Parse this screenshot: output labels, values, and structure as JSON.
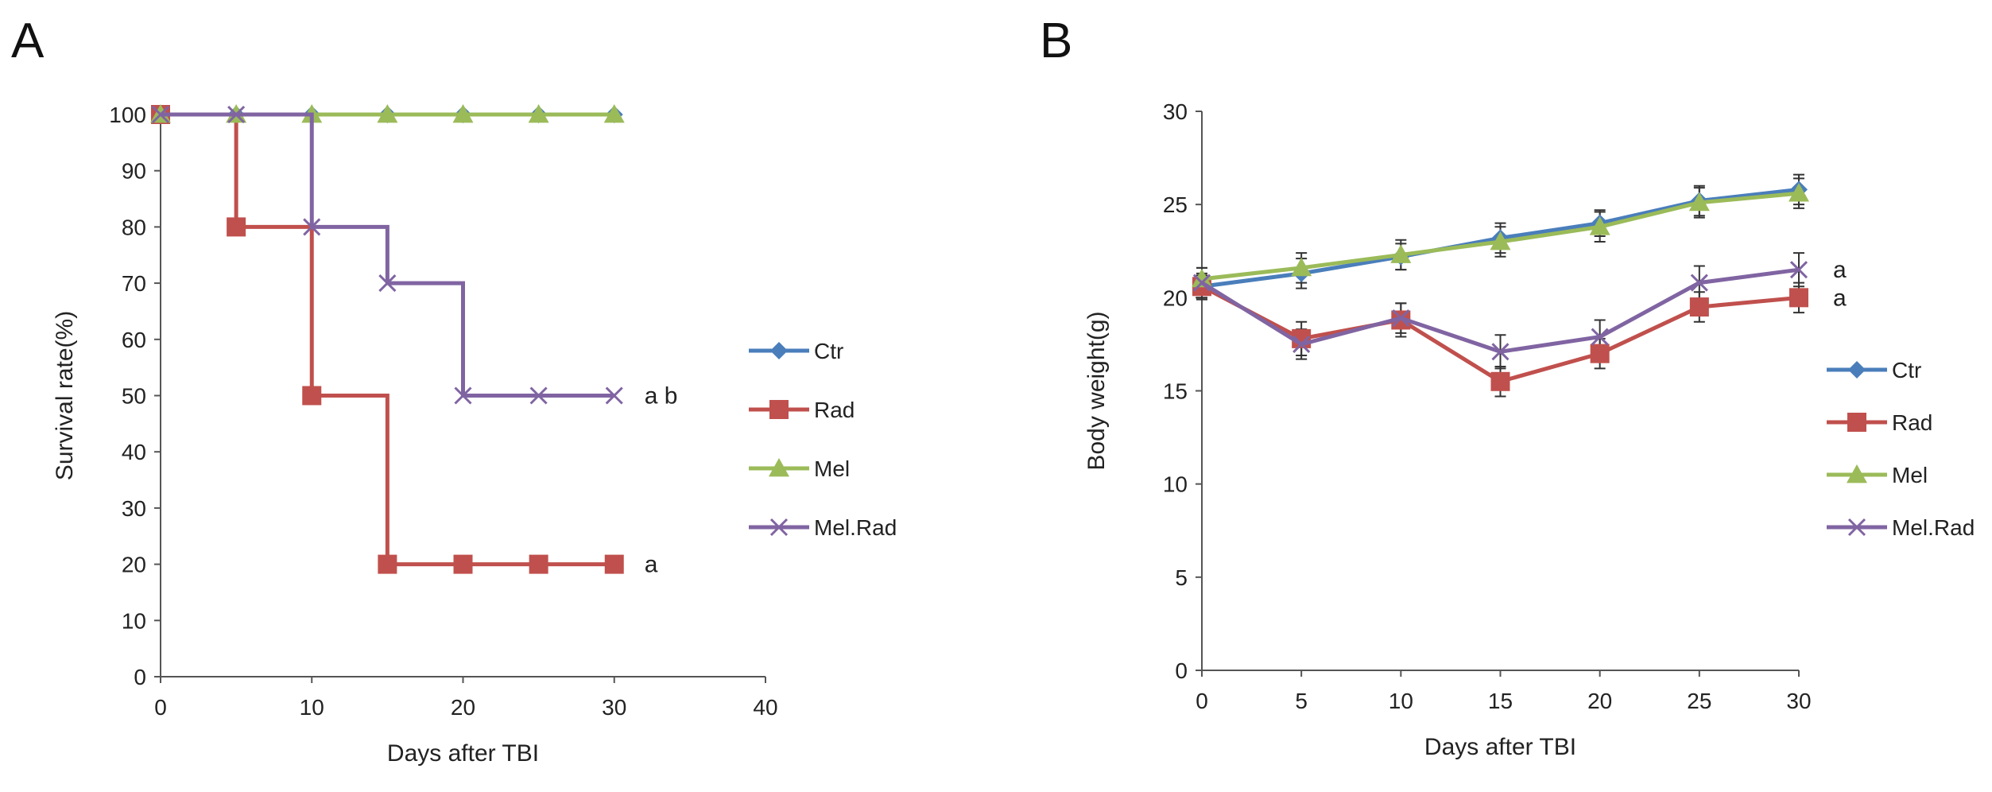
{
  "panels": {
    "A": {
      "label": "A"
    },
    "B": {
      "label": "B"
    }
  },
  "chart_data": [
    {
      "type": "line",
      "step": true,
      "panel": "A",
      "title": "",
      "xlabel": "Days after TBI",
      "ylabel": "Survival rate(%)",
      "xlim": [
        0,
        40
      ],
      "ylim": [
        0,
        100
      ],
      "xticks": [
        0,
        10,
        20,
        30,
        40
      ],
      "yticks": [
        0,
        10,
        20,
        30,
        40,
        50,
        60,
        70,
        80,
        90,
        100
      ],
      "legend_position": "right",
      "series": [
        {
          "name": "Ctr",
          "color": "#4a7ebb",
          "marker": "diamond",
          "x": [
            0,
            5,
            10,
            15,
            20,
            25,
            30
          ],
          "y": [
            100,
            100,
            100,
            100,
            100,
            100,
            100
          ]
        },
        {
          "name": "Rad",
          "color": "#c0504d",
          "marker": "square",
          "x": [
            0,
            5,
            10,
            15,
            20,
            25,
            30
          ],
          "y": [
            100,
            80,
            50,
            20,
            20,
            20,
            20
          ]
        },
        {
          "name": "Mel",
          "color": "#9bbb59",
          "marker": "triangle",
          "x": [
            0,
            5,
            10,
            15,
            20,
            25,
            30
          ],
          "y": [
            100,
            100,
            100,
            100,
            100,
            100,
            100
          ]
        },
        {
          "name": "Mel.Rad",
          "color": "#8064a2",
          "marker": "x",
          "x": [
            0,
            5,
            10,
            15,
            20,
            25,
            30
          ],
          "y": [
            100,
            100,
            80,
            70,
            50,
            50,
            50
          ]
        }
      ],
      "annotations": [
        {
          "text": "a b",
          "x": 30,
          "y": 50
        },
        {
          "text": "a",
          "x": 30,
          "y": 20
        }
      ]
    },
    {
      "type": "line",
      "panel": "B",
      "title": "",
      "xlabel": "Days after TBI",
      "ylabel": "Body weight(g)",
      "xlim": [
        0,
        30
      ],
      "ylim": [
        0,
        30
      ],
      "xticks": [
        0,
        5,
        10,
        15,
        20,
        25,
        30
      ],
      "yticks": [
        0,
        5,
        10,
        15,
        20,
        25,
        30
      ],
      "legend_position": "right",
      "series": [
        {
          "name": "Ctr",
          "color": "#4a7ebb",
          "marker": "diamond",
          "x": [
            0,
            5,
            10,
            15,
            20,
            25,
            30
          ],
          "y": [
            20.6,
            21.3,
            22.2,
            23.2,
            24.0,
            25.2,
            25.8
          ],
          "err": [
            0.6,
            0.8,
            0.7,
            0.8,
            0.7,
            0.8,
            0.8
          ]
        },
        {
          "name": "Rad",
          "color": "#c0504d",
          "marker": "square",
          "x": [
            0,
            5,
            10,
            15,
            20,
            25,
            30
          ],
          "y": [
            20.6,
            17.8,
            18.8,
            15.5,
            17.0,
            19.5,
            20.0
          ],
          "err": [
            0.7,
            0.9,
            0.9,
            0.8,
            0.8,
            0.8,
            0.8
          ]
        },
        {
          "name": "Mel",
          "color": "#9bbb59",
          "marker": "triangle",
          "x": [
            0,
            5,
            10,
            15,
            20,
            25,
            30
          ],
          "y": [
            21.0,
            21.6,
            22.3,
            23.0,
            23.8,
            25.1,
            25.6
          ],
          "err": [
            0.6,
            0.8,
            0.8,
            0.8,
            0.8,
            0.8,
            0.8
          ]
        },
        {
          "name": "Mel.Rad",
          "color": "#8064a2",
          "marker": "x",
          "x": [
            0,
            5,
            10,
            15,
            20,
            25,
            30
          ],
          "y": [
            20.8,
            17.5,
            18.9,
            17.1,
            17.9,
            20.8,
            21.5
          ],
          "err": [
            0.8,
            0.8,
            0.8,
            0.9,
            0.9,
            0.9,
            0.9
          ]
        }
      ],
      "annotations": [
        {
          "text": "a",
          "x": 30,
          "y": 21.5
        },
        {
          "text": "a",
          "x": 30,
          "y": 20.0
        }
      ]
    }
  ]
}
